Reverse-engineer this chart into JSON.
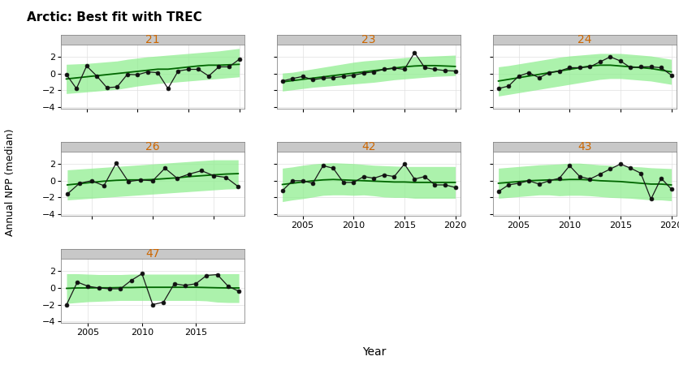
{
  "title": "Arctic: Best fit with TREC",
  "ylabel": "Annual NPP (median)",
  "xlabel": "Year",
  "panels": [
    {
      "id": "21",
      "years": [
        2003,
        2004,
        2005,
        2006,
        2007,
        2008,
        2009,
        2010,
        2011,
        2012,
        2013,
        2014,
        2015,
        2016,
        2017,
        2018,
        2019,
        2020
      ],
      "values": [
        -0.1,
        -1.8,
        0.9,
        -0.3,
        -1.7,
        -1.6,
        -0.1,
        -0.15,
        0.2,
        0.1,
        -1.8,
        0.3,
        0.5,
        0.5,
        -0.3,
        0.8,
        0.8,
        1.7
      ],
      "trend": [
        -0.65,
        -0.52,
        -0.39,
        -0.26,
        -0.13,
        0.0,
        0.13,
        0.26,
        0.39,
        0.52,
        0.52,
        0.65,
        0.78,
        0.91,
        1.0,
        1.0,
        1.05,
        1.1
      ],
      "upper": [
        1.1,
        1.15,
        1.2,
        1.3,
        1.4,
        1.5,
        1.7,
        1.85,
        2.0,
        2.1,
        2.2,
        2.3,
        2.4,
        2.5,
        2.6,
        2.7,
        2.85,
        3.0
      ],
      "lower": [
        -2.4,
        -2.3,
        -2.2,
        -2.1,
        -2.0,
        -1.9,
        -1.7,
        -1.5,
        -1.35,
        -1.2,
        -1.1,
        -1.0,
        -0.9,
        -0.8,
        -0.7,
        -0.6,
        -0.5,
        -0.4
      ]
    },
    {
      "id": "23",
      "years": [
        2003,
        2004,
        2005,
        2006,
        2007,
        2008,
        2009,
        2010,
        2011,
        2012,
        2013,
        2014,
        2015,
        2016,
        2017,
        2018,
        2019,
        2020
      ],
      "values": [
        -0.9,
        -0.6,
        -0.35,
        -0.75,
        -0.55,
        -0.5,
        -0.35,
        -0.2,
        0.05,
        0.2,
        0.5,
        0.65,
        0.5,
        2.5,
        0.7,
        0.5,
        0.35,
        0.3
      ],
      "trend": [
        -1.0,
        -0.85,
        -0.7,
        -0.55,
        -0.4,
        -0.25,
        -0.1,
        0.05,
        0.2,
        0.35,
        0.5,
        0.65,
        0.8,
        0.9,
        0.95,
        0.95,
        0.9,
        0.85
      ],
      "upper": [
        0.05,
        0.15,
        0.35,
        0.55,
        0.75,
        0.95,
        1.15,
        1.35,
        1.5,
        1.6,
        1.7,
        1.8,
        1.9,
        2.0,
        2.05,
        2.1,
        2.15,
        2.2
      ],
      "lower": [
        -2.1,
        -1.95,
        -1.8,
        -1.65,
        -1.55,
        -1.45,
        -1.35,
        -1.25,
        -1.15,
        -1.05,
        -0.9,
        -0.75,
        -0.65,
        -0.55,
        -0.45,
        -0.35,
        -0.3,
        -0.25
      ]
    },
    {
      "id": "24",
      "years": [
        2003,
        2004,
        2005,
        2006,
        2007,
        2008,
        2009,
        2010,
        2011,
        2012,
        2013,
        2014,
        2015,
        2016,
        2017,
        2018,
        2019,
        2020
      ],
      "values": [
        -1.8,
        -1.5,
        -0.3,
        0.1,
        -0.5,
        0.1,
        0.3,
        0.7,
        0.7,
        0.8,
        1.4,
        2.0,
        1.5,
        0.7,
        0.8,
        0.8,
        0.7,
        -0.2
      ],
      "trend": [
        -0.9,
        -0.7,
        -0.5,
        -0.3,
        -0.1,
        0.1,
        0.3,
        0.5,
        0.7,
        0.9,
        1.0,
        1.0,
        0.9,
        0.8,
        0.7,
        0.6,
        0.4,
        0.2
      ],
      "upper": [
        0.8,
        0.95,
        1.15,
        1.35,
        1.55,
        1.75,
        1.95,
        2.1,
        2.2,
        2.3,
        2.4,
        2.4,
        2.4,
        2.3,
        2.2,
        2.1,
        1.9,
        1.7
      ],
      "lower": [
        -2.7,
        -2.5,
        -2.3,
        -2.1,
        -1.9,
        -1.7,
        -1.5,
        -1.3,
        -1.1,
        -0.9,
        -0.7,
        -0.6,
        -0.6,
        -0.7,
        -0.8,
        -0.9,
        -1.1,
        -1.3
      ]
    },
    {
      "id": "26",
      "years": [
        2003,
        2004,
        2005,
        2006,
        2007,
        2008,
        2009,
        2010,
        2011,
        2012,
        2013,
        2014,
        2015,
        2016,
        2017
      ],
      "values": [
        -1.6,
        -0.3,
        0.0,
        -0.6,
        2.1,
        -0.1,
        0.1,
        0.0,
        1.5,
        0.3,
        0.8,
        1.2,
        0.6,
        0.4,
        -0.7
      ],
      "trend": [
        -0.5,
        -0.35,
        -0.2,
        -0.05,
        0.05,
        0.1,
        0.1,
        0.15,
        0.25,
        0.35,
        0.5,
        0.6,
        0.7,
        0.8,
        0.85
      ],
      "upper": [
        1.3,
        1.4,
        1.5,
        1.6,
        1.7,
        1.8,
        1.9,
        2.0,
        2.1,
        2.2,
        2.3,
        2.4,
        2.5,
        2.5,
        2.5
      ],
      "lower": [
        -2.3,
        -2.2,
        -2.1,
        -2.0,
        -1.9,
        -1.8,
        -1.7,
        -1.6,
        -1.5,
        -1.4,
        -1.3,
        -1.2,
        -1.1,
        -1.0,
        -0.95
      ]
    },
    {
      "id": "42",
      "years": [
        2003,
        2004,
        2005,
        2006,
        2007,
        2008,
        2009,
        2010,
        2011,
        2012,
        2013,
        2014,
        2015,
        2016,
        2017,
        2018,
        2019,
        2020
      ],
      "values": [
        -1.2,
        0.0,
        0.0,
        -0.3,
        1.8,
        1.5,
        -0.2,
        -0.2,
        0.5,
        0.3,
        0.7,
        0.5,
        2.0,
        0.2,
        0.5,
        -0.5,
        -0.5,
        -0.8
      ],
      "trend": [
        -0.45,
        -0.3,
        -0.15,
        0.0,
        0.1,
        0.15,
        0.1,
        0.05,
        0.0,
        -0.05,
        -0.1,
        -0.15,
        -0.15,
        -0.2,
        -0.2,
        -0.2,
        -0.2,
        -0.2
      ],
      "upper": [
        1.5,
        1.65,
        1.85,
        2.0,
        2.1,
        2.15,
        2.1,
        2.05,
        1.95,
        1.85,
        1.8,
        1.75,
        1.7,
        1.7,
        1.7,
        1.7,
        1.7,
        1.7
      ],
      "lower": [
        -2.5,
        -2.3,
        -2.15,
        -1.95,
        -1.75,
        -1.7,
        -1.7,
        -1.75,
        -1.7,
        -1.8,
        -1.95,
        -2.0,
        -2.0,
        -2.1,
        -2.1,
        -2.1,
        -2.1,
        -2.1
      ]
    },
    {
      "id": "43",
      "years": [
        2003,
        2004,
        2005,
        2006,
        2007,
        2008,
        2009,
        2010,
        2011,
        2012,
        2013,
        2014,
        2015,
        2016,
        2017,
        2018,
        2019,
        2020
      ],
      "values": [
        -1.3,
        -0.5,
        -0.3,
        0.0,
        -0.4,
        0.0,
        0.3,
        1.8,
        0.5,
        0.2,
        0.8,
        1.4,
        2.0,
        1.5,
        0.9,
        -2.2,
        0.3,
        -1.0
      ],
      "trend": [
        -0.3,
        -0.2,
        -0.1,
        0.0,
        0.05,
        0.1,
        0.1,
        0.15,
        0.15,
        0.1,
        0.0,
        -0.05,
        -0.1,
        -0.2,
        -0.3,
        -0.4,
        -0.4,
        -0.5
      ],
      "upper": [
        1.5,
        1.6,
        1.7,
        1.8,
        1.9,
        1.95,
        2.0,
        2.1,
        2.1,
        2.0,
        1.9,
        1.85,
        1.8,
        1.7,
        1.65,
        1.55,
        1.5,
        1.45
      ],
      "lower": [
        -2.1,
        -2.0,
        -1.9,
        -1.8,
        -1.7,
        -1.7,
        -1.8,
        -1.75,
        -1.75,
        -1.8,
        -1.9,
        -2.0,
        -2.05,
        -2.1,
        -2.2,
        -2.3,
        -2.3,
        -2.4
      ]
    },
    {
      "id": "47",
      "years": [
        2003,
        2004,
        2005,
        2006,
        2007,
        2008,
        2009,
        2010,
        2011,
        2012,
        2013,
        2014,
        2015,
        2016,
        2017,
        2018,
        2019
      ],
      "values": [
        -2.0,
        0.7,
        0.2,
        0.0,
        -0.1,
        -0.1,
        0.9,
        1.7,
        -2.0,
        -1.7,
        0.5,
        0.3,
        0.5,
        1.5,
        1.6,
        0.2,
        -0.4
      ],
      "trend": [
        -0.05,
        0.0,
        0.0,
        0.02,
        0.02,
        0.05,
        0.05,
        0.08,
        0.08,
        0.08,
        0.08,
        0.08,
        0.08,
        0.05,
        0.02,
        0.0,
        0.0
      ],
      "upper": [
        1.7,
        1.7,
        1.65,
        1.6,
        1.6,
        1.6,
        1.65,
        1.65,
        1.65,
        1.65,
        1.65,
        1.65,
        1.65,
        1.65,
        1.7,
        1.7,
        1.7
      ],
      "lower": [
        -1.85,
        -1.75,
        -1.65,
        -1.6,
        -1.55,
        -1.5,
        -1.5,
        -1.5,
        -1.5,
        -1.5,
        -1.5,
        -1.5,
        -1.5,
        -1.55,
        -1.7,
        -1.75,
        -1.75
      ]
    }
  ],
  "panel_label_color": "#cc6600",
  "trend_color": "#006600",
  "shade_color": "#90ee90",
  "data_line_color": "#1a1a1a",
  "bg_color": "#ffffff",
  "strip_bg": "#c8c8c8",
  "ylim": [
    -4.2,
    3.5
  ],
  "yticks": [
    -4,
    -2,
    0,
    2
  ],
  "title_fontsize": 11,
  "label_fontsize": 9,
  "tick_fontsize": 8,
  "panel_label_fontsize": 10
}
